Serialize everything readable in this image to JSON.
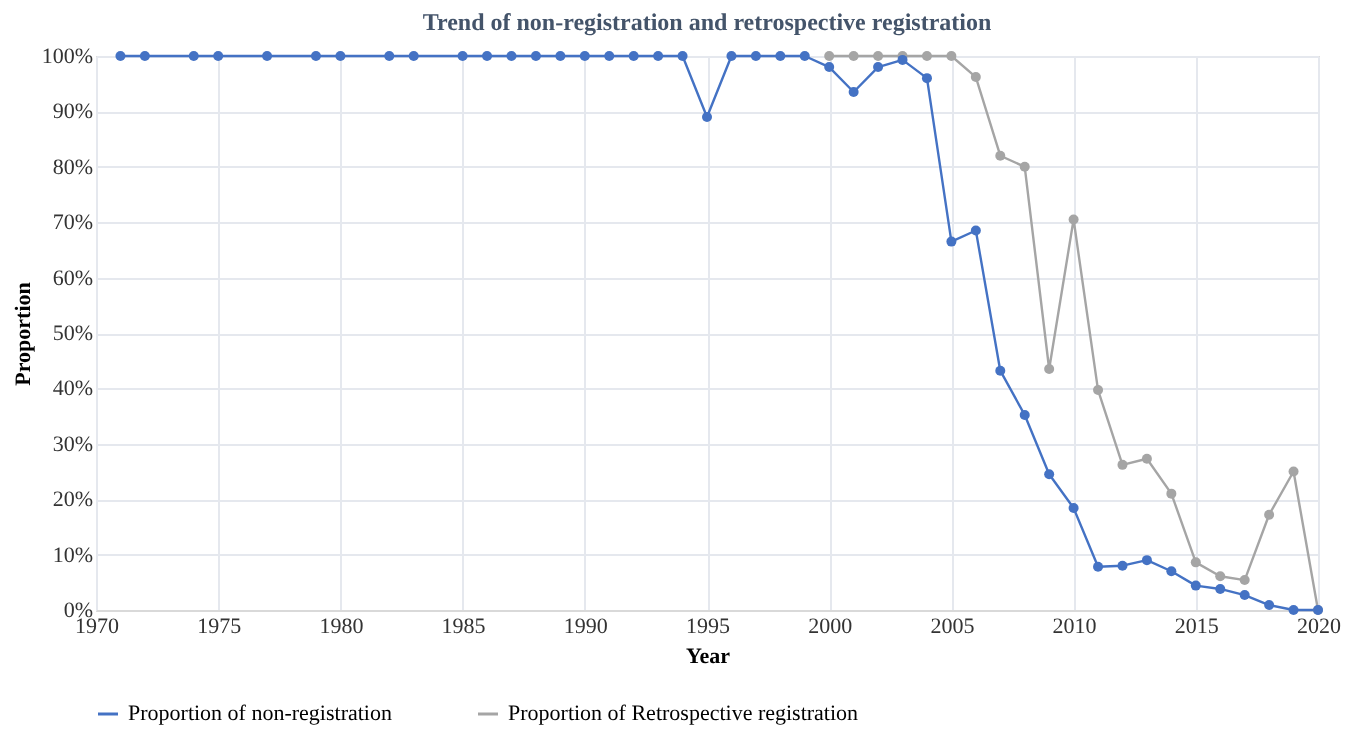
{
  "chart_data": {
    "type": "line",
    "title": "Trend of non-registration and retrospective registration",
    "xlabel": "Year",
    "ylabel": "Proportion",
    "series": [
      {
        "name": "Proportion of non-registration",
        "color": "#4472c4",
        "x": [
          1971,
          1972,
          1974,
          1975,
          1977,
          1979,
          1980,
          1982,
          1983,
          1985,
          1986,
          1987,
          1988,
          1989,
          1990,
          1991,
          1992,
          1993,
          1994,
          1995,
          1996,
          1997,
          1998,
          1999,
          2000,
          2001,
          2002,
          2003,
          2004,
          2005,
          2006,
          2007,
          2008,
          2009,
          2010,
          2011,
          2012,
          2013,
          2014,
          2015,
          2016,
          2017,
          2018,
          2019,
          2020
        ],
        "values": [
          100,
          100,
          100,
          100,
          100,
          100,
          100,
          100,
          100,
          100,
          100,
          100,
          100,
          100,
          100,
          100,
          100,
          100,
          100,
          89,
          100,
          100,
          100,
          100,
          98,
          93.5,
          98,
          99.3,
          96,
          66.5,
          68.5,
          43.2,
          35.2,
          24.5,
          18.4,
          7.8,
          8,
          9,
          7,
          4.4,
          3.8,
          2.7,
          0.9,
          0,
          0
        ]
      },
      {
        "name": "Proportion of Retrospective registration",
        "color": "#a5a5a5",
        "x": [
          2000,
          2001,
          2002,
          2003,
          2004,
          2005,
          2006,
          2007,
          2008,
          2009,
          2010,
          2011,
          2012,
          2013,
          2014,
          2015,
          2016,
          2017,
          2018,
          2019,
          2020
        ],
        "values": [
          100,
          100,
          100,
          100,
          100,
          100,
          96.2,
          82,
          80,
          43.5,
          70.5,
          39.7,
          26.2,
          27.3,
          21,
          8.6,
          6.1,
          5.4,
          17.2,
          25,
          0
        ]
      }
    ],
    "xlim": [
      1970,
      2020
    ],
    "xticks": [
      1970,
      1975,
      1980,
      1985,
      1990,
      1995,
      2000,
      2005,
      2010,
      2015,
      2020
    ],
    "ylim": [
      0,
      100
    ],
    "yticks": [
      {
        "value": 0,
        "label": "0%"
      },
      {
        "value": 10,
        "label": "10%"
      },
      {
        "value": 20,
        "label": "20%"
      },
      {
        "value": 30,
        "label": "30%"
      },
      {
        "value": 40,
        "label": "40%"
      },
      {
        "value": 50,
        "label": "50%"
      },
      {
        "value": 60,
        "label": "60%"
      },
      {
        "value": 70,
        "label": "70%"
      },
      {
        "value": 80,
        "label": "80%"
      },
      {
        "value": 90,
        "label": "90%"
      },
      {
        "value": 100,
        "label": "100%"
      }
    ],
    "grid": true,
    "legend": "bottom",
    "marker": "circle",
    "line_style": "solid"
  }
}
